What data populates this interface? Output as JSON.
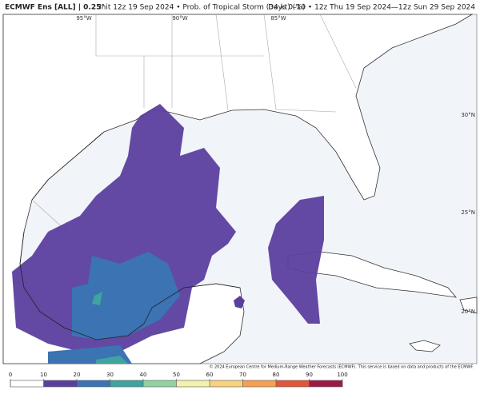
{
  "header": {
    "title": "ECMWF Ens [ALL] | 0.25°",
    "subtitle": "Init 12z 19 Sep 2024 • Prob. of Tropical Storm (34 kt) (%)",
    "period": "Days 0–10 • 12z Thu 19 Sep 2024—12z Sun 29 Sep 2024"
  },
  "map": {
    "lon_labels": [
      "95°W",
      "90°W",
      "85°W"
    ],
    "lat_labels": [
      "30°N",
      "25°N",
      "20°N"
    ],
    "credit": "© 2024 European Centre for Medium-Range Weather Forecasts (ECMWF). This service is based on data and products of the ECMWF."
  },
  "colorbar": {
    "ticks": [
      0,
      10,
      20,
      30,
      40,
      50,
      60,
      70,
      80,
      90,
      100
    ],
    "colors": [
      "#ffffff",
      "#5b3f9e",
      "#3b73b3",
      "#3fa3a0",
      "#8fd3a0",
      "#f2f2ad",
      "#f8d27c",
      "#f5a052",
      "#e0563a",
      "#9c1b46"
    ]
  }
}
